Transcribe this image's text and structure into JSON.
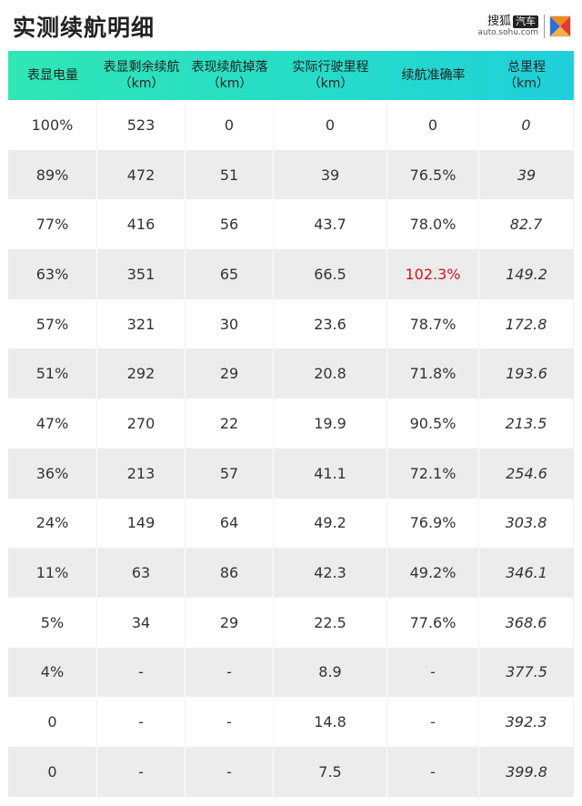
{
  "title": "实测续航明细",
  "logo": {
    "brand": "搜狐",
    "tag": "汽车",
    "url": "auto.sohu.com",
    "colors": {
      "blue": "#2a6fd6",
      "orange": "#f08a1d",
      "red": "#e23b2e"
    }
  },
  "table": {
    "headers": [
      {
        "line1": "表显电量",
        "line2": ""
      },
      {
        "line1": "表显剩余续航",
        "line2": "（km）"
      },
      {
        "line1": "表现续航掉落",
        "line2": "（km）"
      },
      {
        "line1": "实际行驶里程",
        "line2": "（km）"
      },
      {
        "line1": "续航准确率",
        "line2": ""
      },
      {
        "line1": "总里程",
        "line2": "（km）"
      }
    ],
    "rows": [
      [
        "100%",
        "523",
        "0",
        "0",
        "0",
        "0"
      ],
      [
        "89%",
        "472",
        "51",
        "39",
        "76.5%",
        "39"
      ],
      [
        "77%",
        "416",
        "56",
        "43.7",
        "78.0%",
        "82.7"
      ],
      [
        "63%",
        "351",
        "65",
        "66.5",
        "102.3%",
        "149.2"
      ],
      [
        "57%",
        "321",
        "30",
        "23.6",
        "78.7%",
        "172.8"
      ],
      [
        "51%",
        "292",
        "29",
        "20.8",
        "71.8%",
        "193.6"
      ],
      [
        "47%",
        "270",
        "22",
        "19.9",
        "90.5%",
        "213.5"
      ],
      [
        "36%",
        "213",
        "57",
        "41.1",
        "72.1%",
        "254.6"
      ],
      [
        "24%",
        "149",
        "64",
        "49.2",
        "76.9%",
        "303.8"
      ],
      [
        "11%",
        "63",
        "86",
        "42.3",
        "49.2%",
        "346.1"
      ],
      [
        "5%",
        "34",
        "29",
        "22.5",
        "77.6%",
        "368.6"
      ],
      [
        "4%",
        "-",
        "-",
        "8.9",
        "-",
        "377.5"
      ],
      [
        "0",
        "-",
        "-",
        "14.8",
        "-",
        "392.3"
      ],
      [
        "0",
        "-",
        "-",
        "7.5",
        "-",
        "399.8"
      ]
    ],
    "highlight_color": "#d7141e",
    "header_gradient": [
      "#2fe7b5",
      "#1fd0db"
    ]
  }
}
